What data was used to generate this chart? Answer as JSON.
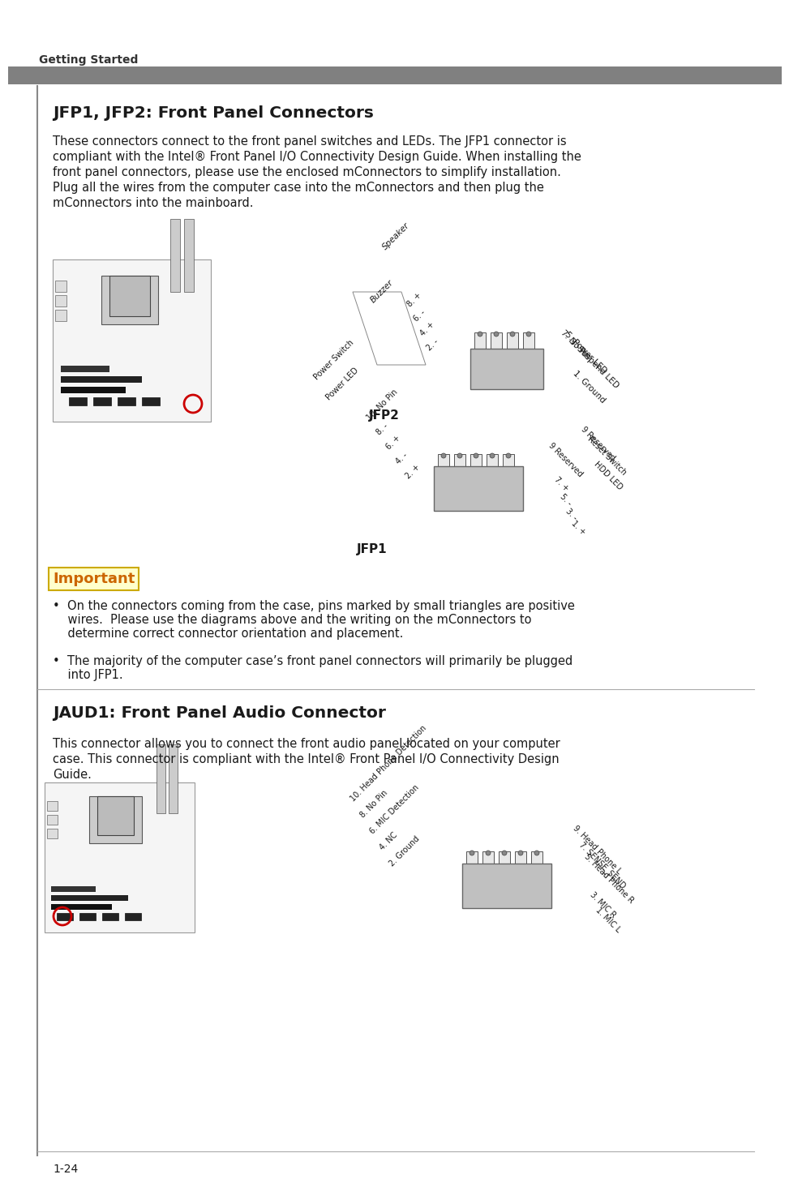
{
  "page_bg": "#ffffff",
  "header_bar_color": "#808080",
  "header_text": "Getting Started",
  "header_text_color": "#333333",
  "left_bar_color": "#888888",
  "section1_title": "JFP1, JFP2: Front Panel Connectors",
  "section1_body_lines": [
    "These connectors connect to the front panel switches and LEDs. The JFP1 connector is",
    "compliant with the Intel® Front Panel I/O Connectivity Design Guide. When installing the",
    "front panel connectors, please use the enclosed mConnectors to simplify installation.",
    "Plug all the wires from the computer case into the mConnectors and then plug the",
    "mConnectors into the mainboard."
  ],
  "important_title": "Important",
  "important_body_lines": [
    "•  On the connectors coming from the case, pins marked by small triangles are positive",
    "    wires.  Please use the diagrams above and the writing on the mConnectors to",
    "    determine correct connector orientation and placement.",
    "",
    "•  The majority of the computer case’s front panel connectors will primarily be plugged",
    "    into JFP1."
  ],
  "section2_title": "JAUD1: Front Panel Audio Connector",
  "section2_body_lines": [
    "This connector allows you to connect the front audio panel located on your computer",
    "case. This connector is compliant with the Intel® Front Panel I/O Connectivity Design",
    "Guide."
  ],
  "footer_text": "1-24",
  "text_color": "#1a1a1a",
  "body_font_size": 10.5,
  "title_font_size": 14.5,
  "header_font_size": 10,
  "important_font_size": 13
}
